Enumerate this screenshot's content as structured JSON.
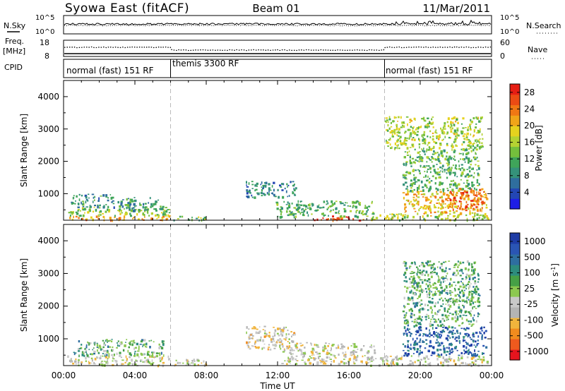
{
  "header": {
    "station": "Syowa East (fitACF)",
    "beam": "Beam 01",
    "date": "11/Mar/2011"
  },
  "top_panels": {
    "nsky_label": "N.Sky",
    "nsearch_label": "N.Search",
    "log_ticks": [
      "10^5",
      "10^0"
    ],
    "freq_label_line1": "Freq.",
    "freq_label_line2": "[MHz]",
    "freq_ticks": [
      "18",
      "8"
    ],
    "nave_label": "Nave",
    "nave_ticks": [
      "60",
      "0"
    ],
    "cpid_label": "CPID",
    "cpid_segments": [
      {
        "label": "normal (fast) 151 RF",
        "start_hour": 0,
        "end_hour": 6
      },
      {
        "label": "themis 3300 RF",
        "start_hour": 6,
        "end_hour": 18
      },
      {
        "label": "normal (fast) 151 RF",
        "start_hour": 18,
        "end_hour": 24
      }
    ]
  },
  "colors": {
    "power_scale": [
      "#1e1ee6",
      "#2346b4",
      "#2f6e9e",
      "#35927a",
      "#3fa55a",
      "#74bf3c",
      "#b4d232",
      "#e6d21e",
      "#f0a519",
      "#f07814",
      "#eb4b14",
      "#e61e14"
    ],
    "velocity_scale": [
      "#e6141e",
      "#ee5a1e",
      "#f08c1e",
      "#f0b43c",
      "#b4b4b4",
      "#c8c8c8",
      "#8cc850",
      "#46a046",
      "#2d8c7d",
      "#2e6ea0",
      "#2a55b4",
      "#1e3ca5"
    ]
  },
  "chart_data": [
    {
      "type": "heatmap",
      "title": "Power",
      "xlabel": "",
      "ylabel": "Slant Range [km]",
      "x_unit": "hours UT",
      "xlim": [
        0,
        24
      ],
      "ylim": [
        180,
        4500
      ],
      "yticks": [
        "1000",
        "2000",
        "3000",
        "4000"
      ],
      "colorbar": {
        "label": "Power [dB]",
        "ticks": [
          "4",
          "8",
          "12",
          "16",
          "20",
          "24",
          "28"
        ],
        "range": [
          0,
          30
        ]
      },
      "blobs": [
        {
          "x": [
            0.2,
            5.9
          ],
          "y": [
            200,
            330
          ],
          "value": 22
        },
        {
          "x": [
            0.2,
            5.9
          ],
          "y": [
            330,
            600
          ],
          "value": 15
        },
        {
          "x": [
            0.4,
            2.8
          ],
          "y": [
            600,
            1000
          ],
          "value": 9
        },
        {
          "x": [
            3.0,
            5.6
          ],
          "y": [
            500,
            900
          ],
          "value": 10
        },
        {
          "x": [
            6.0,
            8.0
          ],
          "y": [
            200,
            320
          ],
          "value": 14
        },
        {
          "x": [
            10.2,
            13.0
          ],
          "y": [
            900,
            1400
          ],
          "value": 8
        },
        {
          "x": [
            11.8,
            17.4
          ],
          "y": [
            300,
            800
          ],
          "value": 12
        },
        {
          "x": [
            14.0,
            17.0
          ],
          "y": [
            200,
            330
          ],
          "value": 26
        },
        {
          "x": [
            17.0,
            23.8
          ],
          "y": [
            200,
            400
          ],
          "value": 16
        },
        {
          "x": [
            19.0,
            23.7
          ],
          "y": [
            400,
            1100
          ],
          "value": 20
        },
        {
          "x": [
            21.5,
            23.6
          ],
          "y": [
            500,
            1200
          ],
          "value": 25
        },
        {
          "x": [
            19.0,
            23.3
          ],
          "y": [
            1100,
            2400
          ],
          "value": 12
        },
        {
          "x": [
            18.0,
            23.5
          ],
          "y": [
            2400,
            3400
          ],
          "value": 16
        }
      ]
    },
    {
      "type": "heatmap",
      "title": "Velocity",
      "xlabel": "Time UT",
      "ylabel": "Slant Range [km]",
      "x_unit": "hours UT",
      "xlim": [
        0,
        24
      ],
      "ylim": [
        180,
        4500
      ],
      "xticks": [
        "00:00",
        "04:00",
        "08:00",
        "12:00",
        "16:00",
        "20:00",
        "00:00"
      ],
      "yticks": [
        "1000",
        "2000",
        "3000",
        "4000"
      ],
      "colorbar": {
        "label": "Velocity [m s^-1]",
        "ticks": [
          "1000",
          "500",
          "100",
          "25",
          "-25",
          "-100",
          "-500",
          "-1000"
        ],
        "range": [
          -1200,
          1200
        ]
      },
      "blobs": [
        {
          "x": [
            0.2,
            5.9
          ],
          "y": [
            200,
            500
          ],
          "value": -150
        },
        {
          "x": [
            0.4,
            5.6
          ],
          "y": [
            500,
            1000
          ],
          "value": 300
        },
        {
          "x": [
            6.0,
            8.0
          ],
          "y": [
            200,
            400
          ],
          "value": -250
        },
        {
          "x": [
            10.2,
            13.0
          ],
          "y": [
            700,
            1400
          ],
          "value": -300
        },
        {
          "x": [
            12.0,
            17.4
          ],
          "y": [
            250,
            900
          ],
          "value": -200
        },
        {
          "x": [
            17.0,
            23.8
          ],
          "y": [
            200,
            500
          ],
          "value": -150
        },
        {
          "x": [
            19.0,
            23.7
          ],
          "y": [
            500,
            1400
          ],
          "value": 800
        },
        {
          "x": [
            19.0,
            23.3
          ],
          "y": [
            1400,
            3400
          ],
          "value": 300
        }
      ]
    }
  ]
}
